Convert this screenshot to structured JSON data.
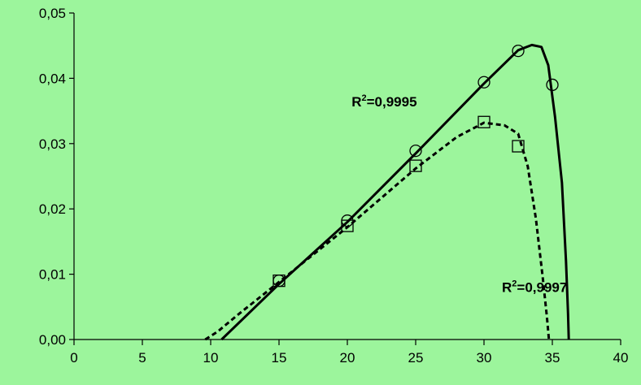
{
  "chart_data": {
    "type": "scatter",
    "title": "",
    "xlabel": "",
    "ylabel": "",
    "xlim": [
      0,
      40
    ],
    "ylim": [
      0,
      0.05
    ],
    "grid": false,
    "legend": "none",
    "background_color": "#9cf59c",
    "x_ticks": [
      0,
      5,
      10,
      15,
      20,
      25,
      30,
      35,
      40
    ],
    "x_tick_labels": [
      "0",
      "5",
      "10",
      "15",
      "20",
      "25",
      "30",
      "35",
      "40"
    ],
    "y_ticks": [
      0,
      0.01,
      0.02,
      0.03,
      0.04,
      0.05
    ],
    "y_tick_labels": [
      "0,00",
      "0,01",
      "0,02",
      "0,03",
      "0,04",
      "0,05"
    ],
    "series": [
      {
        "marker": "circle",
        "line_style": "solid",
        "points": [
          [
            15,
            0.009
          ],
          [
            20,
            0.0182
          ],
          [
            25,
            0.0289
          ],
          [
            30,
            0.0394
          ],
          [
            32.5,
            0.0442
          ],
          [
            35,
            0.039
          ]
        ],
        "fit_curve": [
          [
            10.8,
            0.0
          ],
          [
            15,
            0.0085
          ],
          [
            20,
            0.018
          ],
          [
            25,
            0.0285
          ],
          [
            30,
            0.0392
          ],
          [
            32.5,
            0.0443
          ],
          [
            33.5,
            0.0451
          ],
          [
            34.2,
            0.0448
          ],
          [
            34.7,
            0.042
          ],
          [
            35.2,
            0.034
          ],
          [
            35.7,
            0.024
          ],
          [
            36.0,
            0.012
          ],
          [
            36.15,
            0.004
          ],
          [
            36.2,
            0.0
          ]
        ]
      },
      {
        "marker": "square",
        "line_style": "dashed",
        "points": [
          [
            15,
            0.009
          ],
          [
            20,
            0.0174
          ],
          [
            25,
            0.0266
          ],
          [
            30,
            0.0333
          ],
          [
            32.5,
            0.0296
          ]
        ],
        "fit_curve": [
          [
            9.6,
            0.0
          ],
          [
            10.5,
            0.0012
          ],
          [
            12,
            0.0038
          ],
          [
            15,
            0.0088
          ],
          [
            20,
            0.0172
          ],
          [
            25,
            0.0262
          ],
          [
            28,
            0.031
          ],
          [
            30,
            0.0332
          ],
          [
            31.5,
            0.0328
          ],
          [
            32.5,
            0.0315
          ],
          [
            33.2,
            0.0265
          ],
          [
            33.8,
            0.0185
          ],
          [
            34.3,
            0.0095
          ],
          [
            34.6,
            0.0035
          ],
          [
            34.75,
            0.0
          ]
        ]
      }
    ],
    "annotations": [
      {
        "base": "R",
        "sup": "2",
        "value": "=0,9995",
        "x": 22.7,
        "y": 0.0357
      },
      {
        "base": "R",
        "sup": "2",
        "value": "=0,9997",
        "x": 33.7,
        "y": 0.0073
      }
    ]
  }
}
